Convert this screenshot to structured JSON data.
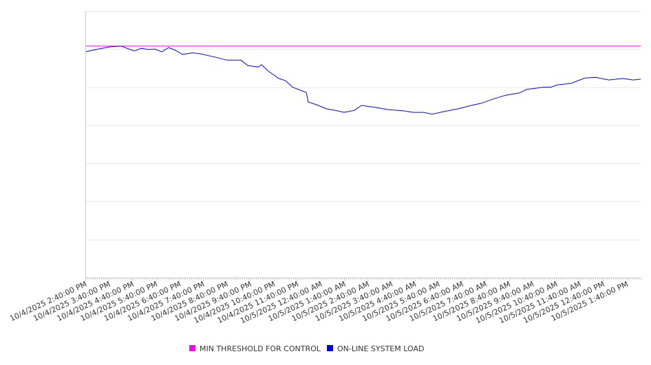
{
  "chart_data": {
    "type": "line",
    "title": "",
    "xlabel": "",
    "ylabel": "",
    "x_unit": "hours since 10/4/2025 2:40:00 PM",
    "xlim": [
      0,
      23.6
    ],
    "ylim": [
      0,
      70
    ],
    "y_gridlines": [
      0,
      10,
      20,
      30,
      40,
      50,
      60,
      70
    ],
    "grid": true,
    "legend_position": "bottom",
    "x_tick_labels": [
      "10/4/2025 2:40:00 PM",
      "10/4/2025 3:40:00 PM",
      "10/4/2025 4:40:00 PM",
      "10/4/2025 5:40:00 PM",
      "10/4/2025 6:40:00 PM",
      "10/4/2025 7:40:00 PM",
      "10/4/2025 8:40:00 PM",
      "10/4/2025 9:40:00 PM",
      "10/4/2025 10:40:00 PM",
      "10/4/2025 11:40:00 PM",
      "10/5/2025 12:40:00 AM",
      "10/5/2025 1:40:00 AM",
      "10/5/2025 2:40:00 AM",
      "10/5/2025 3:40:00 AM",
      "10/5/2025 4:40:00 AM",
      "10/5/2025 5:40:00 AM",
      "10/5/2025 6:40:00 AM",
      "10/5/2025 7:40:00 AM",
      "10/5/2025 8:40:00 AM",
      "10/5/2025 9:40:00 AM",
      "10/5/2025 10:40:00 AM",
      "10/5/2025 11:40:00 AM",
      "10/5/2025 12:40:00 PM",
      "10/5/2025 1:40:00 PM"
    ],
    "series": [
      {
        "name": "MIN THRESHOLD FOR CONTROL",
        "color": "#ff00ff",
        "points": [
          [
            0,
            60.8
          ],
          [
            23.6,
            60.8
          ]
        ]
      },
      {
        "name": "ON-LINE SYSTEM LOAD",
        "color": "#0000ff",
        "points": [
          [
            0,
            59.3
          ],
          [
            0.47,
            59.9
          ],
          [
            1.05,
            60.6
          ],
          [
            1.52,
            60.8
          ],
          [
            2.08,
            59.5
          ],
          [
            2.37,
            60.2
          ],
          [
            2.66,
            59.9
          ],
          [
            2.95,
            60.0
          ],
          [
            3.25,
            59.3
          ],
          [
            3.54,
            60.4
          ],
          [
            3.83,
            59.7
          ],
          [
            4.12,
            58.6
          ],
          [
            4.56,
            59.0
          ],
          [
            4.85,
            58.8
          ],
          [
            5.44,
            58.0
          ],
          [
            6.02,
            57.1
          ],
          [
            6.61,
            57.1
          ],
          [
            6.9,
            55.7
          ],
          [
            7.34,
            55.3
          ],
          [
            7.49,
            55.9
          ],
          [
            7.78,
            54.2
          ],
          [
            8.22,
            52.3
          ],
          [
            8.51,
            51.7
          ],
          [
            8.8,
            50.0
          ],
          [
            9.39,
            48.6
          ],
          [
            9.47,
            46.1
          ],
          [
            9.82,
            45.4
          ],
          [
            10.26,
            44.3
          ],
          [
            10.7,
            43.8
          ],
          [
            10.99,
            43.4
          ],
          [
            11.43,
            43.9
          ],
          [
            11.73,
            45.2
          ],
          [
            12.31,
            44.7
          ],
          [
            12.89,
            44.1
          ],
          [
            13.48,
            43.8
          ],
          [
            13.92,
            43.4
          ],
          [
            14.36,
            43.4
          ],
          [
            14.74,
            42.9
          ],
          [
            15.23,
            43.6
          ],
          [
            15.82,
            44.3
          ],
          [
            16.4,
            45.2
          ],
          [
            16.84,
            45.8
          ],
          [
            17.28,
            46.8
          ],
          [
            17.87,
            47.9
          ],
          [
            18.45,
            48.5
          ],
          [
            18.74,
            49.4
          ],
          [
            19.47,
            50.0
          ],
          [
            19.77,
            50.0
          ],
          [
            20.06,
            50.6
          ],
          [
            20.64,
            51.0
          ],
          [
            21.23,
            52.4
          ],
          [
            21.67,
            52.6
          ],
          [
            22.25,
            51.9
          ],
          [
            22.84,
            52.3
          ],
          [
            23.27,
            51.9
          ],
          [
            23.6,
            52.1
          ]
        ]
      }
    ]
  }
}
